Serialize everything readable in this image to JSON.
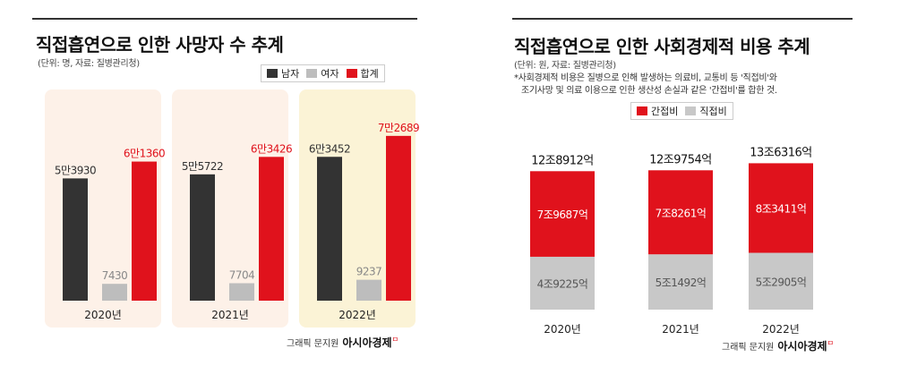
{
  "colors": {
    "male": "#333333",
    "female": "#bdbdbd",
    "total": "#e0121c",
    "indirect": "#e0121c",
    "direct": "#c8c8c8",
    "highlight_bg": "#fbf3d6",
    "panel_bg": "#fdf1e8"
  },
  "left": {
    "title": "직접흡연으로 인한 사망자 수 추계",
    "subtitle": "(단위: 명, 자료: 질병관리청)",
    "legend": [
      {
        "label": "남자",
        "color_key": "male"
      },
      {
        "label": "여자",
        "color_key": "female"
      },
      {
        "label": "합계",
        "color_key": "total"
      }
    ]
  },
  "right": {
    "title": "직접흡연으로 인한 사회경제적 비용 추계",
    "subtitle": "(단위: 원, 자료: 질병관리청)",
    "note_line1": "*사회경제적 비용은 질병으로 인해 발생하는 의료비, 교통비 등 '직접비'와",
    "note_line2": "조기사망 및 의료 이용으로 인한 생산성 손실과 같은 '간접비'를 합한 것.",
    "legend": [
      {
        "label": "간접비",
        "color_key": "indirect"
      },
      {
        "label": "직접비",
        "color_key": "direct"
      }
    ]
  },
  "credit": {
    "text": "그래픽 문지원",
    "brand": "아시아경제",
    "mark": "ㅁ"
  },
  "chart_data": [
    {
      "type": "bar",
      "title": "직접흡연으로 인한 사망자 수 추계",
      "categories": [
        "2020년",
        "2021년",
        "2022년"
      ],
      "series": [
        {
          "name": "남자",
          "values": [
            53930,
            55722,
            63452
          ],
          "labels": [
            "5만3930",
            "5만5722",
            "6만3452"
          ]
        },
        {
          "name": "여자",
          "values": [
            7430,
            7704,
            9237
          ],
          "labels": [
            "7430",
            "7704",
            "9237"
          ]
        },
        {
          "name": "합계",
          "values": [
            61360,
            63426,
            72689
          ],
          "labels": [
            "6만1360",
            "6만3426",
            "7만2689"
          ]
        }
      ],
      "ylim": [
        0,
        75000
      ],
      "grid": false,
      "legend_position": "top-right"
    },
    {
      "type": "bar",
      "stacked": true,
      "title": "직접흡연으로 인한 사회경제적 비용 추계",
      "categories": [
        "2020년",
        "2021년",
        "2022년"
      ],
      "series": [
        {
          "name": "직접비",
          "values": [
            49225,
            51492,
            52905
          ],
          "labels": [
            "4조9225억",
            "5조1492억",
            "5조2905억"
          ]
        },
        {
          "name": "간접비",
          "values": [
            79687,
            78261,
            83411
          ],
          "labels": [
            "7조9687억",
            "7조8261억",
            "8조3411억"
          ]
        }
      ],
      "totals": [
        128912,
        129754,
        136316
      ],
      "total_labels": [
        "12조8912억",
        "12조9754억",
        "13조6316억"
      ],
      "units": "억",
      "ylim": [
        0,
        140000
      ],
      "grid": false,
      "legend_position": "top-center"
    }
  ]
}
